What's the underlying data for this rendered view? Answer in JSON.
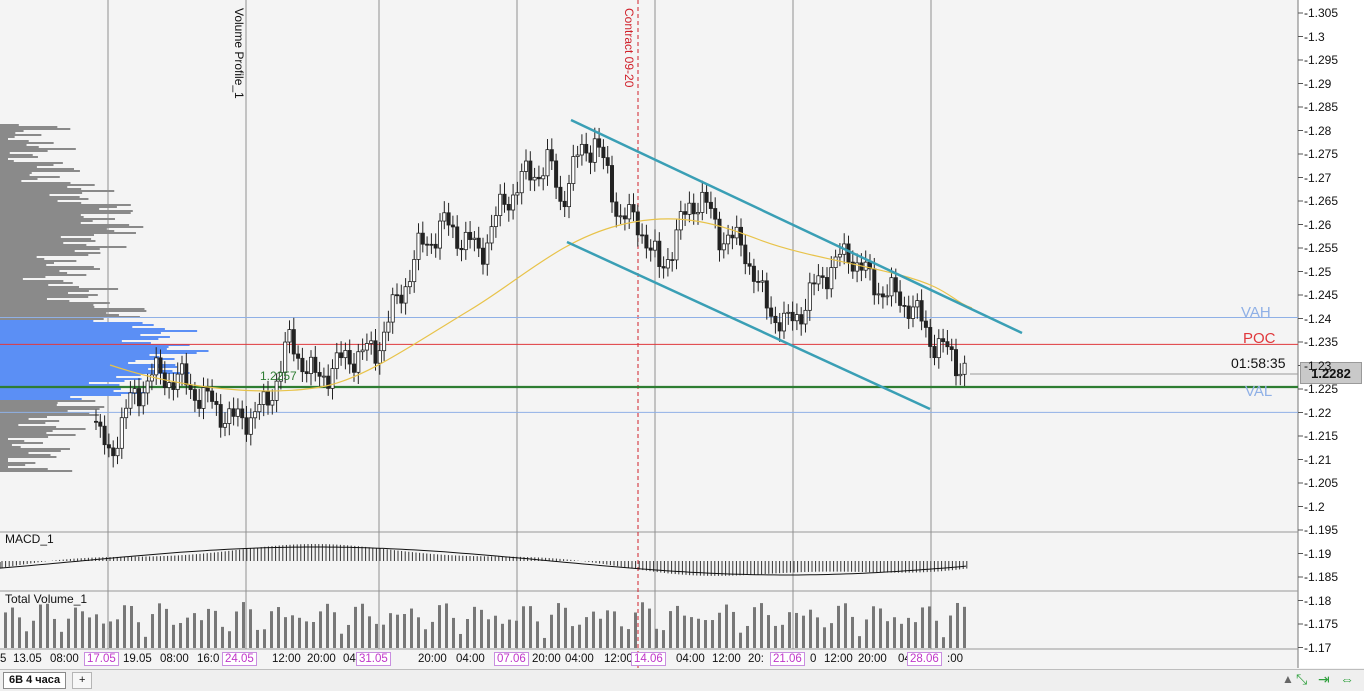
{
  "indicators": {
    "volume_profile": "Volume Profile_1",
    "macd": "MACD_1",
    "total_volume": "Total Volume_1"
  },
  "annotations": {
    "contract": "Contract 09-20",
    "vah": "VAH",
    "poc": "POC",
    "val": "VAL",
    "marker_price": "1.2257",
    "timer": "01:58:35",
    "current_price": "1.2282"
  },
  "y_axis_ticks": [
    "1.305",
    "1.3",
    "1.295",
    "1.29",
    "1.285",
    "1.28",
    "1.275",
    "1.27",
    "1.265",
    "1.26",
    "1.255",
    "1.25",
    "1.245",
    "1.24",
    "1.235",
    "1.23",
    "1.225",
    "1.22",
    "1.215",
    "1.21",
    "1.205",
    "1.2",
    "1.195",
    "1.19",
    "1.185",
    "1.18",
    "1.175",
    "1.17"
  ],
  "x_axis_labels": [
    {
      "text": "5",
      "highlight": false
    },
    {
      "text": "13.05",
      "highlight": false
    },
    {
      "text": "08:00",
      "highlight": false
    },
    {
      "text": "17.05",
      "highlight": true
    },
    {
      "text": "19.05",
      "highlight": false
    },
    {
      "text": "08:00",
      "highlight": false
    },
    {
      "text": "16:0",
      "highlight": false
    },
    {
      "text": "24.05",
      "highlight": true
    },
    {
      "text": "12:00",
      "highlight": false
    },
    {
      "text": "20:00",
      "highlight": false
    },
    {
      "text": "04",
      "highlight": false
    },
    {
      "text": "31.05",
      "highlight": true
    },
    {
      "text": "20:00",
      "highlight": false
    },
    {
      "text": "04:00",
      "highlight": false
    },
    {
      "text": "07.06",
      "highlight": true
    },
    {
      "text": "20:00",
      "highlight": false
    },
    {
      "text": "04:00",
      "highlight": false
    },
    {
      "text": "12:00",
      "highlight": false
    },
    {
      "text": "14.06",
      "highlight": true
    },
    {
      "text": "04:00",
      "highlight": false
    },
    {
      "text": "12:00",
      "highlight": false
    },
    {
      "text": "20:",
      "highlight": false
    },
    {
      "text": "21.06",
      "highlight": true
    },
    {
      "text": "0",
      "highlight": false
    },
    {
      "text": "12:00",
      "highlight": false
    },
    {
      "text": "20:00",
      "highlight": false
    },
    {
      "text": "04",
      "highlight": false
    },
    {
      "text": "28.06",
      "highlight": true
    },
    {
      "text": ":00",
      "highlight": false
    }
  ],
  "tabs": [
    {
      "label": "6B 4 часа",
      "active": true
    },
    {
      "label": "+",
      "active": false
    }
  ],
  "colors": {
    "poc": "#e0383c",
    "vah_val": "#8fb0e6",
    "val_line": "#2e7d32",
    "channel": "#3a9fb5",
    "ma": "#e8c34a",
    "contract": "#d0202a",
    "volume_profile": "#8a8a8a",
    "value_area": "#5b8ff5"
  },
  "chart_data": {
    "type": "candlestick",
    "y_range": [
      1.17,
      1.305
    ],
    "poc": 1.2345,
    "vah": 1.2402,
    "val": 1.2228,
    "close_price": 1.2282,
    "marker_level": 1.2257,
    "channel_upper": {
      "from": 1.2825,
      "to": 1.2367
    },
    "channel_lower": {
      "from": 1.2565,
      "to": 1.2207
    }
  }
}
